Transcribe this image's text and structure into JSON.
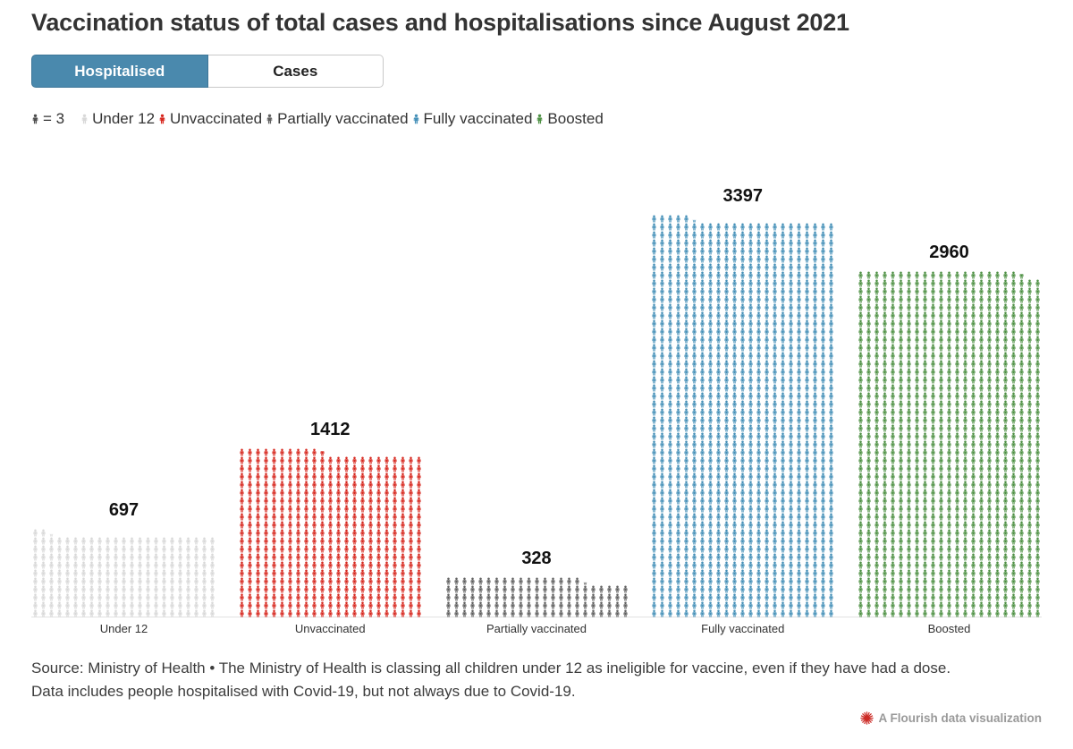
{
  "title": "Vaccination status of total cases and hospitalisations since August 2021",
  "tabs": {
    "hospitalised": "Hospitalised",
    "cases": "Cases"
  },
  "legend": {
    "key_label": "= 3",
    "key_color": "#4d4d4d",
    "items": [
      {
        "label": "Under 12",
        "color": "#d8d8d8"
      },
      {
        "label": "Unvaccinated",
        "color": "#d7281f"
      },
      {
        "label": "Partially vaccinated",
        "color": "#606060"
      },
      {
        "label": "Fully vaccinated",
        "color": "#4590b8"
      },
      {
        "label": "Boosted",
        "color": "#4e9144"
      }
    ]
  },
  "chart_data": {
    "type": "pictogram",
    "title": "Vaccination status of total cases and hospitalisations since August 2021",
    "selected_view": "Hospitalised",
    "unit_per_icon": 3,
    "icons_columns_per_block": 23,
    "categories": [
      "Under 12",
      "Unvaccinated",
      "Partially vaccinated",
      "Fully vaccinated",
      "Boosted"
    ],
    "values": [
      697,
      1412,
      328,
      3397,
      2960
    ],
    "colors": [
      "#d8d8d8",
      "#d7281f",
      "#606060",
      "#4590b8",
      "#4e9144"
    ],
    "value_labels": [
      "697",
      "1412",
      "328",
      "3397",
      "2960"
    ],
    "legend_position": "top",
    "grid": false
  },
  "footer": {
    "source_line1": "Source: Ministry of Health • The Ministry of Health is classing all children under 12 as ineligible for vaccine, even if they have had a dose.",
    "source_line2": "Data includes people hospitalised with Covid-19, but not always due to Covid-19.",
    "attribution": "A Flourish data visualization"
  }
}
